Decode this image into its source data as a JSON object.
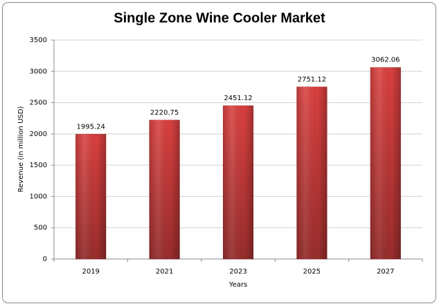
{
  "chart_data": {
    "type": "bar",
    "title": "Single Zone Wine Cooler Market",
    "x_label": "Years",
    "y_label": "Revenue (in million USD)",
    "categories": [
      "2019",
      "2021",
      "2023",
      "2025",
      "2027"
    ],
    "values": [
      1995.24,
      2220.75,
      2451.12,
      2751.12,
      3062.06
    ],
    "color": "#d9403f",
    "ylim": [
      0,
      3500
    ],
    "yticks": [
      0,
      500,
      1000,
      1500,
      2000,
      2500,
      3000,
      3500
    ],
    "grid": true
  }
}
